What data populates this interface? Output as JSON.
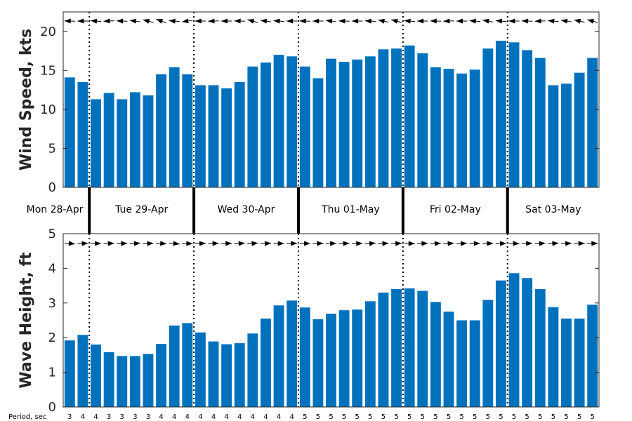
{
  "chart_data": [
    {
      "type": "bar",
      "ylabel": "Wind Speed, kts",
      "ylim": [
        0,
        22.5
      ],
      "yticks": [
        0,
        5,
        10,
        15,
        20
      ],
      "color": "#0072BD",
      "direction": "arrows pointing left (easterly winds)",
      "values": [
        14.1,
        13.5,
        11.3,
        12.1,
        11.3,
        12.2,
        11.8,
        14.5,
        15.4,
        14.5,
        13.1,
        13.1,
        12.7,
        13.5,
        15.5,
        16.0,
        17.0,
        16.8,
        15.5,
        14.0,
        16.5,
        16.1,
        16.4,
        16.8,
        17.7,
        17.8,
        18.2,
        17.2,
        15.4,
        15.2,
        14.6,
        15.1,
        17.8,
        18.8,
        18.6,
        17.6,
        16.6,
        13.1,
        13.3,
        14.7,
        16.6
      ],
      "arrow_angles_deg": [
        178,
        180,
        175,
        183,
        178,
        172,
        165,
        160,
        175,
        188,
        180,
        182,
        180,
        178,
        165,
        172,
        175,
        180,
        178,
        180,
        172,
        178,
        180,
        176,
        168,
        165,
        175,
        180,
        178,
        182,
        180,
        175,
        170,
        175,
        180,
        178,
        182,
        175,
        172,
        168,
        165
      ]
    },
    {
      "type": "bar",
      "ylabel": "Wave Height, ft",
      "ylim": [
        0,
        5
      ],
      "yticks": [
        0,
        1,
        2,
        3,
        4,
        5
      ],
      "color": "#0072BD",
      "direction": "arrows pointing right (propagating west)",
      "values": [
        1.92,
        2.08,
        1.8,
        1.58,
        1.47,
        1.47,
        1.53,
        1.82,
        2.35,
        2.42,
        2.15,
        1.89,
        1.81,
        1.84,
        2.12,
        2.55,
        2.93,
        3.07,
        2.87,
        2.53,
        2.69,
        2.79,
        2.81,
        3.05,
        3.3,
        3.4,
        3.42,
        3.35,
        3.03,
        2.75,
        2.5,
        2.5,
        3.09,
        3.65,
        3.86,
        3.72,
        3.4,
        2.88,
        2.55,
        2.55,
        2.95
      ],
      "arrow_angles_deg": [
        -5,
        3,
        0,
        2,
        3,
        5,
        3,
        -3,
        -6,
        -2,
        3,
        2,
        2,
        4,
        5,
        3,
        0,
        2,
        0,
        2,
        3,
        3,
        2,
        5,
        3,
        2,
        -2,
        2,
        3,
        4,
        3,
        2,
        2,
        0,
        -3,
        2,
        4,
        5,
        3,
        2,
        2
      ]
    }
  ],
  "days": [
    "Mon 28-Apr",
    "Tue 29-Apr",
    "Wed 30-Apr",
    "Thu 01-May",
    "Fri 02-May",
    "Sat 03-May"
  ],
  "day_start_indices": [
    2,
    10,
    18,
    26,
    34
  ],
  "period_label": "Period, sec",
  "periods": [
    "3",
    "4",
    "4",
    "3",
    "3",
    "3",
    "3",
    "4",
    "4",
    "4",
    "4",
    "4",
    "4",
    "4",
    "4",
    "4",
    "4",
    "4",
    "5",
    "5",
    "5",
    "5",
    "5",
    "5",
    "5",
    "5",
    "5",
    "5",
    "5",
    "5",
    "5",
    "5",
    "5",
    "5",
    "5",
    "5",
    "5",
    "5",
    "5",
    "5",
    "5"
  ]
}
